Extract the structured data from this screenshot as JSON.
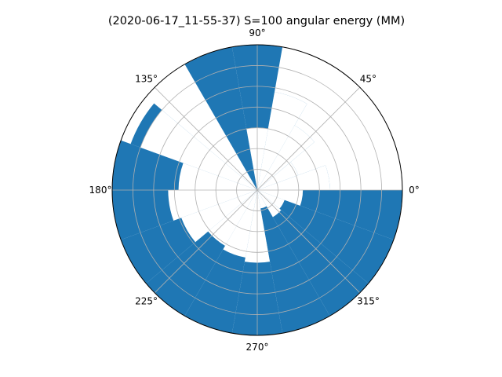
{
  "chart_data": {
    "type": "polar-bar",
    "title": "(2020-06-17_11-55-37) S=100 angular energy (MM)",
    "theta_tick_labels": [
      "0°",
      "45°",
      "90°",
      "135°",
      "180°",
      "225°",
      "270°",
      "315°"
    ],
    "theta_ticks_deg": [
      0,
      45,
      90,
      135,
      180,
      225,
      270,
      315
    ],
    "r_max": 7,
    "r_gridlines": [
      1,
      2,
      3,
      4,
      5,
      6,
      7
    ],
    "r_tick_labels_shown": false,
    "grid": true,
    "bar_color": "#1f77b4",
    "bar_width_deg": 20,
    "bars": [
      {
        "theta": 10,
        "r": 3.5
      },
      {
        "theta": 30,
        "r": 2.1
      },
      {
        "theta": 50,
        "r": 3.6
      },
      {
        "theta": 70,
        "r": 4.8
      },
      {
        "theta": 90,
        "r": 7.0
      },
      {
        "theta": 110,
        "r": 7.0
      },
      {
        "theta": 130,
        "r": 5.0
      },
      {
        "theta": 150,
        "r": 6.5
      },
      {
        "theta": 170,
        "r": 7.0
      },
      {
        "theta": 190,
        "r": 7.0
      },
      {
        "theta": 210,
        "r": 7.0
      },
      {
        "theta": 230,
        "r": 7.0
      },
      {
        "theta": 250,
        "r": 7.0
      },
      {
        "theta": 270,
        "r": 7.0
      },
      {
        "theta": 290,
        "r": 7.0
      },
      {
        "theta": 310,
        "r": 7.0
      },
      {
        "theta": 330,
        "r": 7.0
      },
      {
        "theta": 350,
        "r": 7.0
      }
    ],
    "white_bars": [
      {
        "theta": 10,
        "r": 3.5
      },
      {
        "theta": 30,
        "r": 2.1
      },
      {
        "theta": 50,
        "r": 3.6
      },
      {
        "theta": 70,
        "r": 4.8
      },
      {
        "theta": 90,
        "r": 3.0
      },
      {
        "theta": 110,
        "r": 0.0
      },
      {
        "theta": 130,
        "r": 5.0
      },
      {
        "theta": 150,
        "r": 6.0
      },
      {
        "theta": 170,
        "r": 3.8
      },
      {
        "theta": 190,
        "r": 4.3
      },
      {
        "theta": 210,
        "r": 3.9
      },
      {
        "theta": 230,
        "r": 3.1
      },
      {
        "theta": 250,
        "r": 3.3
      },
      {
        "theta": 270,
        "r": 3.5
      },
      {
        "theta": 290,
        "r": 0.9
      },
      {
        "theta": 310,
        "r": 1.5
      },
      {
        "theta": 330,
        "r": 1.4
      },
      {
        "theta": 350,
        "r": 2.2
      }
    ]
  }
}
